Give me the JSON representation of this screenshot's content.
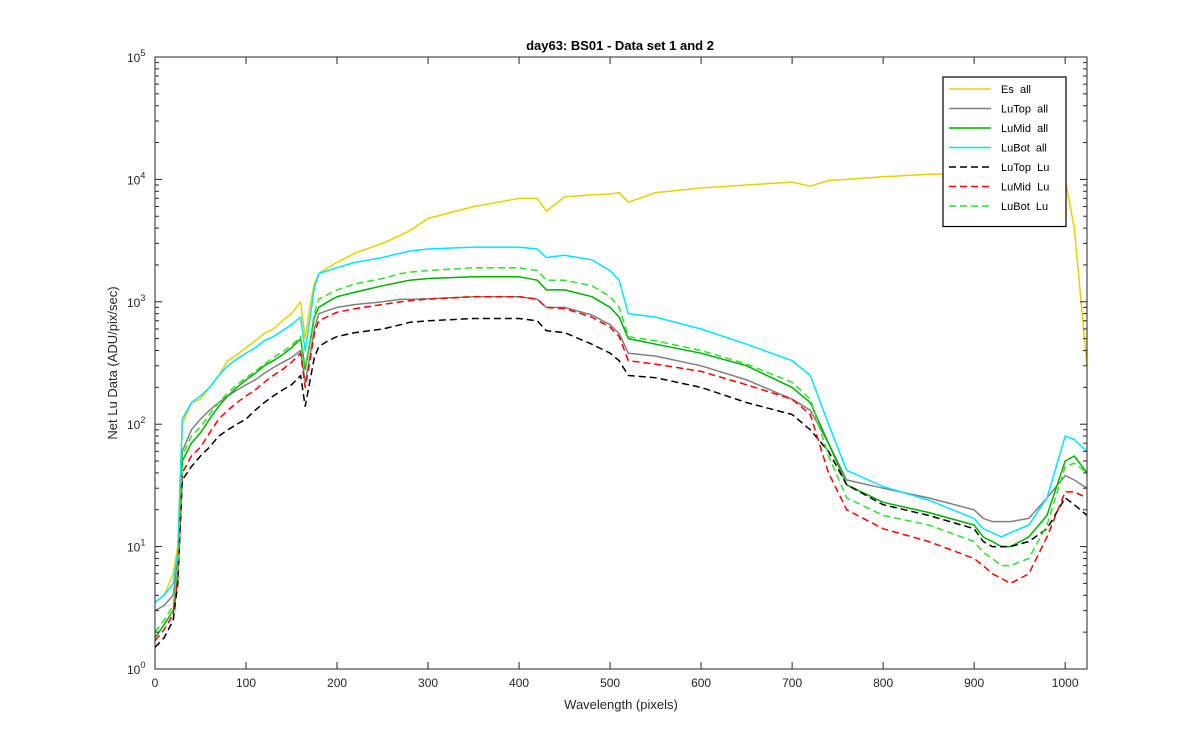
{
  "chart_data": {
    "type": "line",
    "title": "day63: BS01 - Data set 1 and 2",
    "xlabel": "Wavelength (pixels)",
    "ylabel": "Net Lu Data (ADU/pix/sec)",
    "xlim": [
      0,
      1024
    ],
    "ylim": [
      1,
      100000
    ],
    "yscale": "log",
    "xticks": [
      0,
      100,
      200,
      300,
      400,
      500,
      600,
      700,
      800,
      900,
      1000
    ],
    "yticks": [
      {
        "value": 1,
        "base": "10",
        "exp": "0"
      },
      {
        "value": 10,
        "base": "10",
        "exp": "1"
      },
      {
        "value": 100,
        "base": "10",
        "exp": "2"
      },
      {
        "value": 1000,
        "base": "10",
        "exp": "3"
      },
      {
        "value": 10000,
        "base": "10",
        "exp": "4"
      },
      {
        "value": 100000,
        "base": "10",
        "exp": "5"
      }
    ],
    "grid": false,
    "legend_position": "top-right",
    "x": [
      0,
      10,
      20,
      25,
      30,
      40,
      50,
      60,
      70,
      80,
      90,
      100,
      110,
      120,
      130,
      140,
      150,
      160,
      165,
      170,
      175,
      180,
      190,
      200,
      220,
      250,
      270,
      280,
      300,
      350,
      400,
      420,
      430,
      450,
      480,
      500,
      510,
      520,
      550,
      600,
      650,
      700,
      720,
      740,
      760,
      800,
      850,
      900,
      910,
      920,
      930,
      940,
      960,
      980,
      1000,
      1010,
      1024
    ],
    "series": [
      {
        "name": "Es  all",
        "color": "#e6d200",
        "dash": "solid",
        "values": [
          3.5,
          4,
          6,
          10,
          100,
          150,
          160,
          200,
          250,
          330,
          370,
          420,
          480,
          550,
          600,
          700,
          800,
          1000,
          500,
          900,
          1400,
          1700,
          1900,
          2100,
          2500,
          3000,
          3500,
          3800,
          4800,
          6000,
          7000,
          7000,
          5500,
          7200,
          7500,
          7600,
          7800,
          6500,
          7800,
          8500,
          9000,
          9500,
          8800,
          9800,
          10000,
          10500,
          11000,
          11000,
          10800,
          10800,
          10700,
          10600,
          10500,
          10400,
          10000,
          4000,
          300
        ]
      },
      {
        "name": "LuTop  all",
        "color": "#808080",
        "dash": "solid",
        "values": [
          3,
          3.3,
          4,
          8,
          60,
          90,
          110,
          130,
          150,
          170,
          190,
          210,
          230,
          260,
          290,
          320,
          350,
          400,
          220,
          350,
          600,
          800,
          850,
          900,
          950,
          1000,
          1050,
          1050,
          1060,
          1100,
          1100,
          1050,
          900,
          900,
          780,
          650,
          550,
          380,
          360,
          300,
          230,
          160,
          130,
          70,
          35,
          30,
          25,
          20,
          17,
          16,
          16,
          16,
          17,
          25,
          38,
          35,
          30
        ]
      },
      {
        "name": "LuMid  all",
        "color": "#00b000",
        "dash": "solid",
        "values": [
          1.8,
          2.3,
          3,
          6,
          50,
          70,
          85,
          110,
          140,
          170,
          200,
          230,
          260,
          300,
          330,
          370,
          420,
          500,
          280,
          450,
          750,
          900,
          1000,
          1100,
          1200,
          1350,
          1450,
          1500,
          1550,
          1600,
          1600,
          1500,
          1250,
          1250,
          1100,
          900,
          750,
          500,
          450,
          380,
          300,
          200,
          150,
          70,
          32,
          23,
          19,
          15,
          12,
          11,
          10,
          10,
          12,
          18,
          50,
          55,
          40
        ]
      },
      {
        "name": "LuBot  all",
        "color": "#00e5ff",
        "dash": "solid",
        "values": [
          3.5,
          4,
          5,
          9,
          110,
          150,
          170,
          200,
          250,
          300,
          340,
          380,
          420,
          480,
          520,
          580,
          650,
          750,
          400,
          700,
          1300,
          1700,
          1800,
          1900,
          2100,
          2300,
          2500,
          2600,
          2700,
          2800,
          2800,
          2700,
          2300,
          2400,
          2200,
          1800,
          1500,
          800,
          750,
          600,
          450,
          330,
          250,
          100,
          42,
          31,
          24,
          17,
          14,
          13,
          12,
          13,
          15,
          25,
          80,
          75,
          60
        ]
      },
      {
        "name": "LuTop  Lu",
        "color": "#000000",
        "dash": "dashed",
        "values": [
          1.5,
          1.8,
          2.5,
          5,
          35,
          45,
          55,
          65,
          80,
          90,
          100,
          110,
          130,
          150,
          170,
          190,
          210,
          250,
          140,
          220,
          350,
          430,
          480,
          520,
          560,
          600,
          650,
          680,
          700,
          730,
          730,
          700,
          580,
          560,
          450,
          380,
          330,
          250,
          240,
          200,
          150,
          120,
          90,
          60,
          32,
          22,
          18,
          14,
          11,
          10,
          10,
          10,
          11,
          14,
          25,
          22,
          18
        ]
      },
      {
        "name": "LuMid  Lu",
        "color": "#ff0000",
        "dash": "dashed",
        "values": [
          1.7,
          2.1,
          2.8,
          5.5,
          40,
          55,
          65,
          85,
          110,
          130,
          150,
          170,
          190,
          220,
          250,
          280,
          320,
          380,
          200,
          320,
          550,
          700,
          760,
          820,
          880,
          950,
          1000,
          1020,
          1050,
          1100,
          1100,
          1050,
          900,
          880,
          750,
          620,
          520,
          330,
          310,
          270,
          210,
          160,
          120,
          40,
          20,
          14,
          11,
          8,
          7,
          6,
          5.5,
          5,
          6,
          12,
          28,
          28,
          25
        ]
      },
      {
        "name": "LuBot  Lu",
        "color": "#33dd33",
        "dash": "dashed",
        "values": [
          2,
          2.5,
          3.3,
          6.5,
          55,
          80,
          95,
          120,
          150,
          180,
          210,
          240,
          270,
          310,
          350,
          390,
          440,
          520,
          290,
          460,
          800,
          1050,
          1150,
          1250,
          1400,
          1550,
          1700,
          1750,
          1800,
          1900,
          1900,
          1800,
          1500,
          1500,
          1350,
          1100,
          900,
          520,
          480,
          400,
          310,
          220,
          160,
          55,
          25,
          18,
          15,
          11,
          9,
          8,
          7,
          7,
          8,
          15,
          45,
          48,
          40
        ]
      }
    ]
  }
}
